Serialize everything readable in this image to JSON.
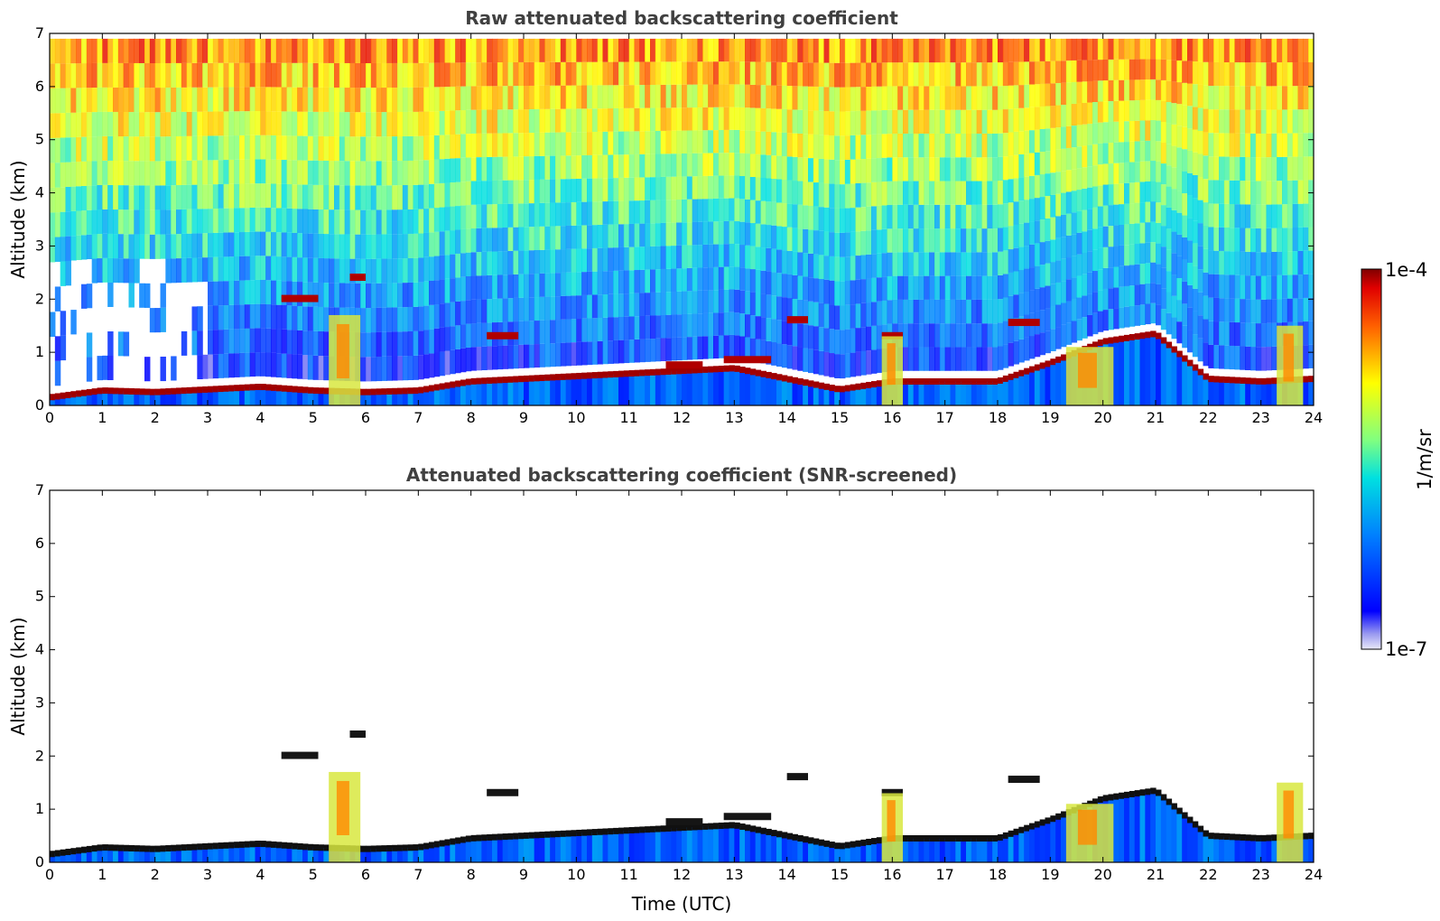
{
  "chart_data": [
    {
      "type": "heatmap",
      "title": "Raw attenuated backscattering coefficient",
      "ylabel": "Altitude (km)",
      "xlabel": "",
      "x_ticks": [
        "0",
        "1",
        "2",
        "3",
        "4",
        "5",
        "6",
        "7",
        "8",
        "9",
        "10",
        "11",
        "12",
        "13",
        "14",
        "15",
        "16",
        "17",
        "18",
        "19",
        "20",
        "21",
        "22",
        "23",
        "24"
      ],
      "y_ticks": [
        "0",
        "1",
        "2",
        "3",
        "4",
        "5",
        "6",
        "7"
      ],
      "xlim": [
        0,
        24
      ],
      "ylim": [
        0,
        7
      ],
      "screening": "raw",
      "boundary_layer_top_km": [
        [
          0,
          0.15
        ],
        [
          1,
          0.28
        ],
        [
          2,
          0.25
        ],
        [
          3,
          0.3
        ],
        [
          4,
          0.35
        ],
        [
          5,
          0.28
        ],
        [
          6,
          0.25
        ],
        [
          7,
          0.28
        ],
        [
          8,
          0.45
        ],
        [
          9,
          0.5
        ],
        [
          10,
          0.55
        ],
        [
          11,
          0.6
        ],
        [
          12,
          0.65
        ],
        [
          13,
          0.7
        ],
        [
          14,
          0.5
        ],
        [
          15,
          0.3
        ],
        [
          16,
          0.45
        ],
        [
          17,
          0.45
        ],
        [
          18,
          0.45
        ],
        [
          19,
          0.8
        ],
        [
          20,
          1.2
        ],
        [
          21,
          1.35
        ],
        [
          22,
          0.5
        ],
        [
          23,
          0.45
        ],
        [
          24,
          0.5
        ]
      ],
      "cloud_layers": [
        {
          "x0": 4.4,
          "x1": 5.1,
          "alt_km": 2.0
        },
        {
          "x0": 5.7,
          "x1": 6.0,
          "alt_km": 2.4
        },
        {
          "x0": 8.3,
          "x1": 8.9,
          "alt_km": 1.3
        },
        {
          "x0": 11.7,
          "x1": 12.4,
          "alt_km": 0.75
        },
        {
          "x0": 12.8,
          "x1": 13.7,
          "alt_km": 0.85
        },
        {
          "x0": 14.0,
          "x1": 14.4,
          "alt_km": 1.6
        },
        {
          "x0": 15.8,
          "x1": 16.2,
          "alt_km": 1.3
        },
        {
          "x0": 18.2,
          "x1": 18.8,
          "alt_km": 1.55
        }
      ],
      "colorbar": {
        "label": "1/m/sr",
        "max_label": "1e-4",
        "min_label": "1e-7",
        "scale": "log",
        "range": [
          1e-07,
          0.0001
        ],
        "colormap": "jet"
      }
    },
    {
      "type": "heatmap",
      "title": "Attenuated backscattering coefficient (SNR-screened)",
      "ylabel": "Altitude (km)",
      "xlabel": "Time (UTC)",
      "x_ticks": [
        "0",
        "1",
        "2",
        "3",
        "4",
        "5",
        "6",
        "7",
        "8",
        "9",
        "10",
        "11",
        "12",
        "13",
        "14",
        "15",
        "16",
        "17",
        "18",
        "19",
        "20",
        "21",
        "22",
        "23",
        "24"
      ],
      "y_ticks": [
        "0",
        "1",
        "2",
        "3",
        "4",
        "5",
        "6",
        "7"
      ],
      "xlim": [
        0,
        24
      ],
      "ylim": [
        0,
        7
      ],
      "screening": "SNR",
      "colorbar": {
        "label": "1/m/sr",
        "max_label": "1e-4",
        "min_label": "1e-7",
        "scale": "log",
        "range": [
          1e-07,
          0.0001
        ],
        "colormap": "jet"
      }
    }
  ],
  "colorbar": {
    "label": "1/m/sr",
    "max_label": "1e-4",
    "min_label": "1e-7"
  }
}
